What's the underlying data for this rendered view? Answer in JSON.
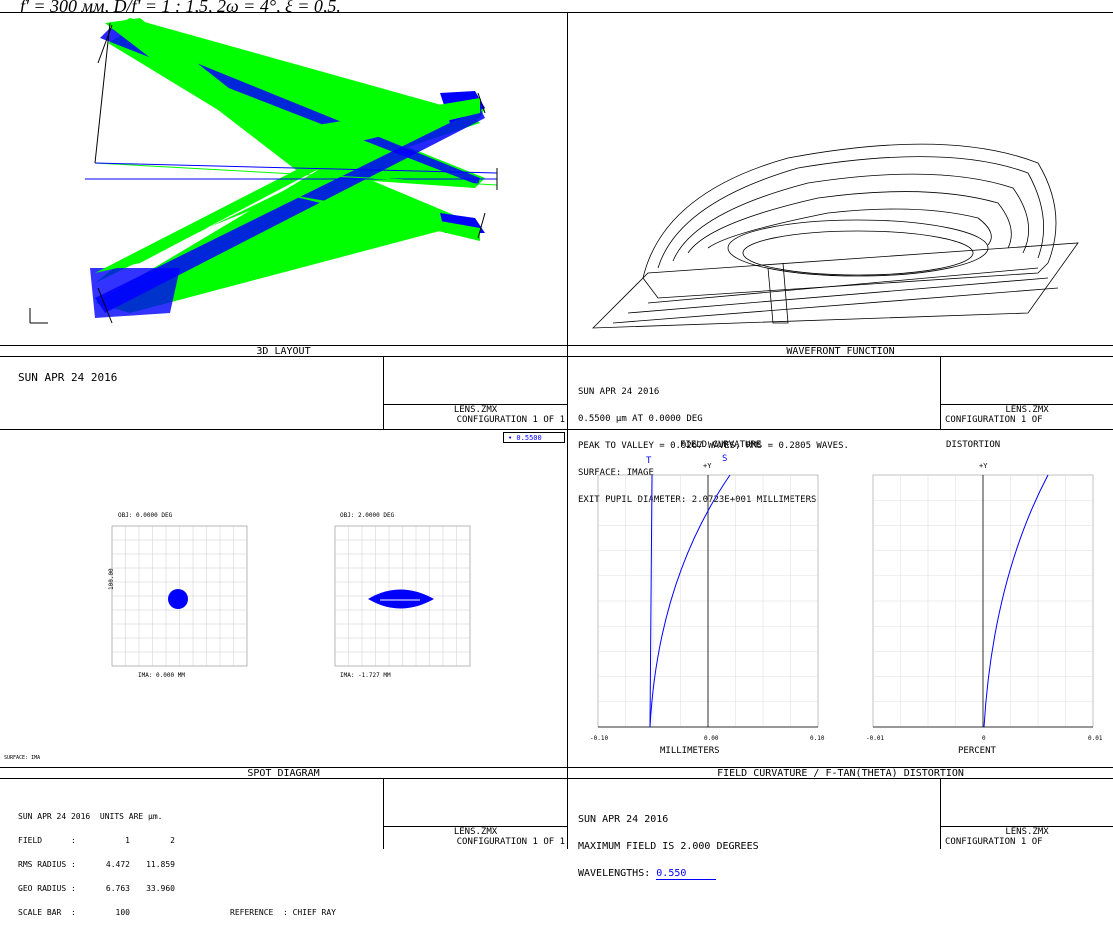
{
  "caption": "f' = 300 мм, D/f' = 1 : 1,5, 2ω = 4°, ξ = 0,5.",
  "panels": {
    "layout": {
      "title": "3D LAYOUT",
      "date": "SUN APR 24 2016",
      "file": "LENS.ZMX",
      "config": "CONFIGURATION 1 OF 1"
    },
    "wavefront": {
      "title": "WAVEFRONT FUNCTION",
      "info_lines": [
        "SUN APR 24 2016",
        "0.5500 µm AT 0.0000 DEG",
        "PEAK TO VALLEY = 0.9267 WAVES, RMS = 0.2805 WAVES.",
        "SURFACE: IMAGE",
        "EXIT PUPIL DIAMETER: 2.0723E+001 MILLIMETERS"
      ],
      "file": "LENS.ZMX",
      "config": "CONFIGURATION 1 OF"
    },
    "spot": {
      "title": "SPOT DIAGRAM",
      "legend": "• 0.5500",
      "obj1": "OBJ: 0.0000 DEG",
      "obj2": "OBJ: 2.0000 DEG",
      "ima1": "IMA: 0.000 MM",
      "ima2": "IMA: -1.727 MM",
      "axis_label": "SURFACE: IMA",
      "side_label": "100.00",
      "info_line1": "SUN APR 24 2016  UNITS ARE µm.",
      "rows": [
        {
          "label": "FIELD      :",
          "v1": "1",
          "v2": "2"
        },
        {
          "label": "RMS RADIUS :",
          "v1": "4.472",
          "v2": "11.859"
        },
        {
          "label": "GEO RADIUS :",
          "v1": "6.763",
          "v2": "33.960"
        },
        {
          "label": "SCALE BAR  :",
          "v1": "100",
          "v2": "REFERENCE  : CHIEF RAY"
        }
      ],
      "file": "LENS.ZMX",
      "config": "CONFIGURATION 1 OF 1"
    },
    "fcd": {
      "title": "FIELD CURVATURE / F-TAN(THETA) DISTORTION",
      "fc_title": "FIELD CURVATURE",
      "dist_title": "DISTORTION",
      "label_t": "T",
      "label_s": "S",
      "label_y1": "+Y",
      "label_y2": "+Y",
      "fc_xlabel": "MILLIMETERS",
      "dist_xlabel": "PERCENT",
      "fc_ticks": [
        "-0.10",
        "0.00",
        "0.10"
      ],
      "dist_ticks": [
        "-0.01",
        "0",
        "0.01"
      ],
      "info_lines": [
        "SUN APR 24 2016",
        "MAXIMUM FIELD IS 2.000 DEGREES"
      ],
      "wavelengths_label": "WAVELENGTHS:",
      "wavelengths_value": "0.550",
      "file": "LENS.ZMX",
      "config": "CONFIGURATION 1 OF"
    }
  },
  "colors": {
    "green": "#00ff00",
    "blue": "#0000ff",
    "line": "#000000"
  }
}
